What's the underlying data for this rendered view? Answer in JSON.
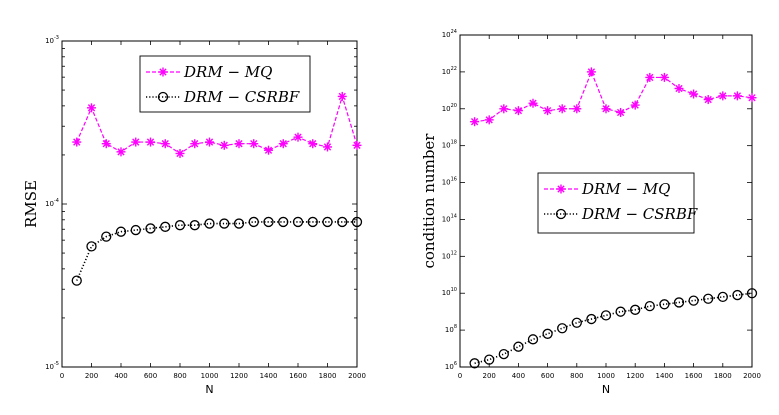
{
  "chart_data": [
    {
      "type": "line",
      "title": "",
      "xlabel": "N",
      "ylabel": "RMSE",
      "yscale": "log",
      "xlim": [
        0,
        2000
      ],
      "ylim_exp": [
        -5,
        -3
      ],
      "x_ticks": [
        "0",
        "200",
        "400",
        "600",
        "800",
        "1000",
        "1200",
        "1400",
        "1600",
        "1800",
        "2000"
      ],
      "y_ticks": [
        {
          "base": "10",
          "exp": "-5"
        },
        {
          "base": "10",
          "exp": "-4"
        },
        {
          "base": "10",
          "exp": "-3"
        }
      ],
      "x": [
        100,
        200,
        300,
        400,
        500,
        600,
        700,
        800,
        900,
        1000,
        1100,
        1200,
        1300,
        1400,
        1500,
        1600,
        1700,
        1800,
        1900,
        2000
      ],
      "legend_position": "top-right",
      "series": [
        {
          "name": "DRM − MQ",
          "color": "#ff00ff",
          "marker": "star",
          "line": "dashed",
          "log10_values": [
            -3.62,
            -3.41,
            -3.63,
            -3.68,
            -3.62,
            -3.62,
            -3.63,
            -3.69,
            -3.63,
            -3.62,
            -3.64,
            -3.63,
            -3.63,
            -3.67,
            -3.63,
            -3.59,
            -3.63,
            -3.65,
            -3.34,
            -3.64
          ]
        },
        {
          "name": "DRM − CSRBF",
          "color": "#000000",
          "marker": "circle",
          "line": "dotted",
          "log10_values": [
            -4.47,
            -4.26,
            -4.2,
            -4.17,
            -4.16,
            -4.15,
            -4.14,
            -4.13,
            -4.13,
            -4.12,
            -4.12,
            -4.12,
            -4.11,
            -4.11,
            -4.11,
            -4.11,
            -4.11,
            -4.11,
            -4.11,
            -4.11
          ]
        }
      ]
    },
    {
      "type": "line",
      "title": "",
      "xlabel": "N",
      "ylabel": "condition number",
      "yscale": "log",
      "xlim": [
        0,
        2000
      ],
      "ylim_exp": [
        6,
        24
      ],
      "x_ticks": [
        "0",
        "200",
        "400",
        "600",
        "800",
        "1000",
        "1200",
        "1400",
        "1600",
        "1800",
        "2000"
      ],
      "y_ticks": [
        {
          "base": "10",
          "exp": "6"
        },
        {
          "base": "10",
          "exp": "8"
        },
        {
          "base": "10",
          "exp": "10"
        },
        {
          "base": "10",
          "exp": "12"
        },
        {
          "base": "10",
          "exp": "14"
        },
        {
          "base": "10",
          "exp": "16"
        },
        {
          "base": "10",
          "exp": "18"
        },
        {
          "base": "10",
          "exp": "20"
        },
        {
          "base": "10",
          "exp": "22"
        },
        {
          "base": "10",
          "exp": "24"
        }
      ],
      "x": [
        100,
        200,
        300,
        400,
        500,
        600,
        700,
        800,
        900,
        1000,
        1100,
        1200,
        1300,
        1400,
        1500,
        1600,
        1700,
        1800,
        1900,
        2000
      ],
      "legend_position": "center-right",
      "series": [
        {
          "name": "DRM − MQ",
          "color": "#ff00ff",
          "marker": "star",
          "line": "dashed",
          "log10_values": [
            19.3,
            19.4,
            20.0,
            19.9,
            20.3,
            19.9,
            20.0,
            20.0,
            22.0,
            20.0,
            19.8,
            20.2,
            21.7,
            21.7,
            21.1,
            20.8,
            20.5,
            20.7,
            20.7,
            20.6
          ]
        },
        {
          "name": "DRM − CSRBF",
          "color": "#000000",
          "marker": "circle",
          "line": "dotted",
          "log10_values": [
            6.2,
            6.4,
            6.7,
            7.1,
            7.5,
            7.8,
            8.1,
            8.4,
            8.6,
            8.8,
            9.0,
            9.1,
            9.3,
            9.4,
            9.5,
            9.6,
            9.7,
            9.8,
            9.9,
            10.0
          ]
        }
      ]
    }
  ]
}
